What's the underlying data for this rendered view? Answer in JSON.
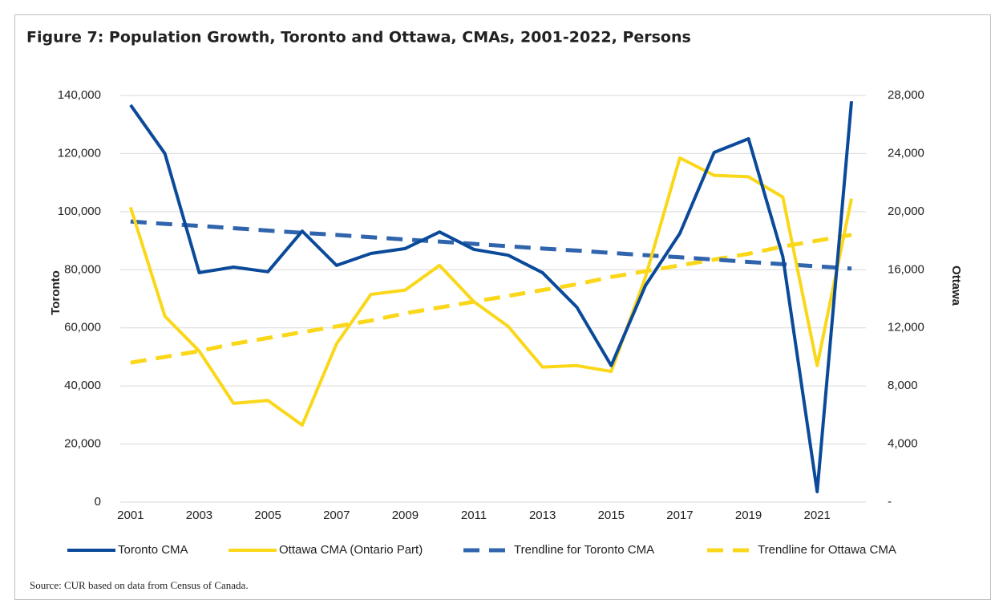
{
  "chart_data": {
    "type": "line",
    "title": "Figure 7: Population  Growth, Toronto and Ottawa, CMAs, 2001-2022, Persons",
    "ylabel": "Toronto",
    "y2label": "Ottawa",
    "source": "Source: CUR based on data from Census of Canada.",
    "x": [
      2001,
      2002,
      2003,
      2004,
      2005,
      2006,
      2007,
      2008,
      2009,
      2010,
      2011,
      2012,
      2013,
      2014,
      2015,
      2016,
      2017,
      2018,
      2019,
      2020,
      2021,
      2022
    ],
    "xlim": [
      2000.7,
      2022.42
    ],
    "xticks": [
      2001,
      2003,
      2005,
      2007,
      2009,
      2011,
      2013,
      2015,
      2017,
      2019,
      2021
    ],
    "ylim": [
      0,
      140000
    ],
    "yticks": [
      0,
      {
        "value": 20000,
        "label": "20,000"
      },
      {
        "value": 40000,
        "label": "40,000"
      },
      {
        "value": 60000,
        "label": "60,000"
      },
      {
        "value": 80000,
        "label": "80,000"
      },
      {
        "value": 100000,
        "label": "100,000"
      },
      {
        "value": 120000,
        "label": "120,000"
      },
      {
        "value": 140000,
        "label": "140,000"
      }
    ],
    "y2lim": [
      0,
      28000
    ],
    "y2ticks": [
      {
        "value": 0,
        "label": "-"
      },
      {
        "value": 4000,
        "label": "4,000"
      },
      {
        "value": 8000,
        "label": "8,000"
      },
      {
        "value": 12000,
        "label": "12,000"
      },
      {
        "value": 16000,
        "label": "16,000"
      },
      {
        "value": 20000,
        "label": "20,000"
      },
      {
        "value": 24000,
        "label": "24,000"
      },
      {
        "value": 28000,
        "label": "28,000"
      }
    ],
    "grid": true,
    "legend": "bottom",
    "series": [
      {
        "name": "Toronto CMA",
        "color": "#0b4a9a",
        "dashed": false,
        "axis": "y",
        "values": [
          136700,
          120000,
          79000,
          80900,
          79300,
          93300,
          81500,
          85600,
          87300,
          93000,
          87000,
          85000,
          79000,
          67100,
          47000,
          74600,
          92500,
          120400,
          125100,
          84500,
          3600,
          138000
        ]
      },
      {
        "name": "Ottawa CMA (Ontario Part)",
        "color": "#fbd71a",
        "dashed": false,
        "axis": "y2",
        "values": [
          20300,
          12800,
          10400,
          6800,
          7000,
          5300,
          10900,
          14300,
          14600,
          16300,
          13800,
          12100,
          9300,
          9400,
          9000,
          15500,
          23700,
          22500,
          22400,
          21000,
          9400,
          20900
        ]
      },
      {
        "name": "Trendline for Toronto CMA",
        "color": "#3064ad",
        "dashed": true,
        "axis": "y",
        "values": [
          96600,
          95800,
          95100,
          94300,
          93500,
          92700,
          92000,
          91200,
          90400,
          89700,
          88900,
          88100,
          87300,
          86600,
          85800,
          85000,
          84300,
          83500,
          82700,
          81900,
          81200,
          80400
        ]
      },
      {
        "name": "Trendline for Ottawa CMA",
        "color": "#fbd71a",
        "dashed": true,
        "axis": "y2",
        "values": [
          9600,
          10000,
          10400,
          10900,
          11300,
          11700,
          12100,
          12500,
          13000,
          13400,
          13800,
          14200,
          14600,
          15000,
          15500,
          15900,
          16300,
          16700,
          17100,
          17600,
          18000,
          18400
        ]
      }
    ]
  }
}
